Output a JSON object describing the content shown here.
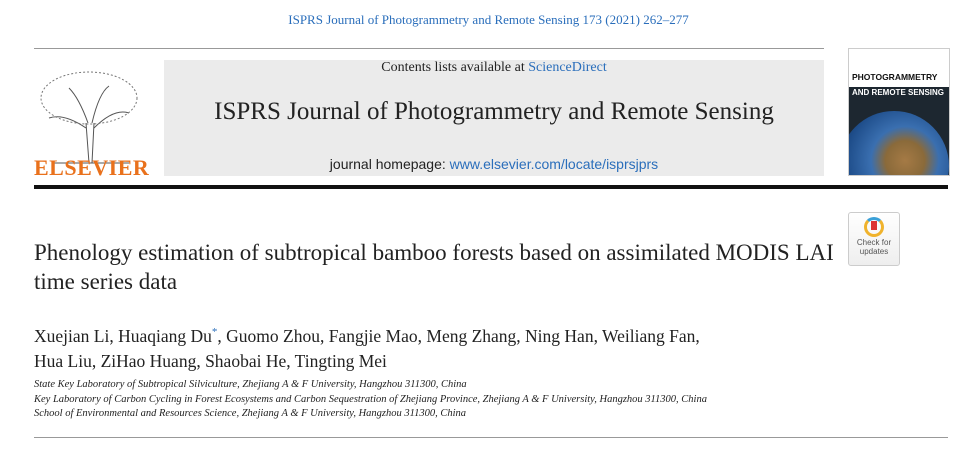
{
  "citation": "ISPRS Journal of Photogrammetry and Remote Sensing 173 (2021) 262–277",
  "banner": {
    "contents_prefix": "Contents lists available at ",
    "contents_link": "ScienceDirect",
    "journal_title": "ISPRS Journal of Photogrammetry and Remote Sensing",
    "homepage_prefix": "journal homepage: ",
    "homepage_link": "www.elsevier.com/locate/isprsjprs"
  },
  "publisher": "ELSEVIER",
  "cover": {
    "line1": "PHOTOGRAMMETRY",
    "line2": "AND REMOTE SENSING"
  },
  "check_updates": {
    "line1": "Check for",
    "line2": "updates"
  },
  "article": {
    "title": "Phenology estimation of subtropical bamboo forests based on assimilated MODIS LAI time series data",
    "authors_a": "Xuejian Li, Huaqiang Du",
    "corresponding_mark": "*",
    "authors_b": ", Guomo Zhou, Fangjie Mao, Meng Zhang, Ning Han, Weiliang Fan,",
    "authors_c": "Hua Liu, ZiHao Huang, Shaobai He, Tingting Mei",
    "affiliations": [
      "State Key Laboratory of Subtropical Silviculture, Zhejiang A & F University, Hangzhou 311300, China",
      "Key Laboratory of Carbon Cycling in Forest Ecosystems and Carbon Sequestration of Zhejiang Province, Zhejiang A & F University, Hangzhou 311300, China",
      "School of Environmental and Resources Science, Zhejiang A & F University, Hangzhou 311300, China"
    ]
  },
  "colors": {
    "link": "#2a6ebb",
    "elsevier": "#e9711c",
    "banner": "#ebebeb"
  }
}
